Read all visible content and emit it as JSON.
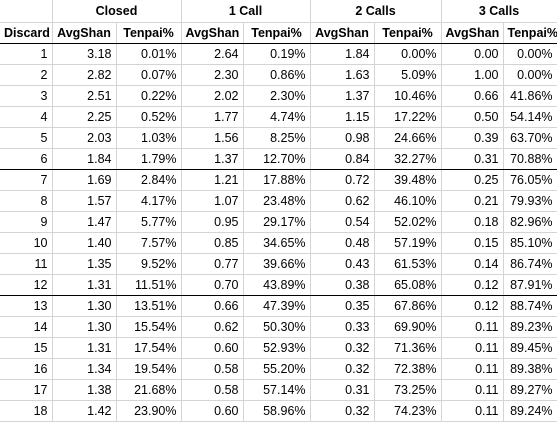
{
  "groups": [
    "Closed",
    "1 Call",
    "2 Calls",
    "3 Calls"
  ],
  "subheaders": [
    "Discard",
    "AvgShan",
    "Tenpai%",
    "AvgShan",
    "Tenpai%",
    "AvgShan",
    "Tenpai%",
    "AvgShan",
    "Tenpai%"
  ],
  "rows": [
    [
      "1",
      "3.18",
      "0.01%",
      "2.64",
      "0.19%",
      "1.84",
      "0.00%",
      "0.00",
      "0.00%"
    ],
    [
      "2",
      "2.82",
      "0.07%",
      "2.30",
      "0.86%",
      "1.63",
      "5.09%",
      "1.00",
      "0.00%"
    ],
    [
      "3",
      "2.51",
      "0.22%",
      "2.02",
      "2.30%",
      "1.37",
      "10.46%",
      "0.66",
      "41.86%"
    ],
    [
      "4",
      "2.25",
      "0.52%",
      "1.77",
      "4.74%",
      "1.15",
      "17.22%",
      "0.50",
      "54.14%"
    ],
    [
      "5",
      "2.03",
      "1.03%",
      "1.56",
      "8.25%",
      "0.98",
      "24.66%",
      "0.39",
      "63.70%"
    ],
    [
      "6",
      "1.84",
      "1.79%",
      "1.37",
      "12.70%",
      "0.84",
      "32.27%",
      "0.31",
      "70.88%"
    ],
    [
      "7",
      "1.69",
      "2.84%",
      "1.21",
      "17.88%",
      "0.72",
      "39.48%",
      "0.25",
      "76.05%"
    ],
    [
      "8",
      "1.57",
      "4.17%",
      "1.07",
      "23.48%",
      "0.62",
      "46.10%",
      "0.21",
      "79.93%"
    ],
    [
      "9",
      "1.47",
      "5.77%",
      "0.95",
      "29.17%",
      "0.54",
      "52.02%",
      "0.18",
      "82.96%"
    ],
    [
      "10",
      "1.40",
      "7.57%",
      "0.85",
      "34.65%",
      "0.48",
      "57.19%",
      "0.15",
      "85.10%"
    ],
    [
      "11",
      "1.35",
      "9.52%",
      "0.77",
      "39.66%",
      "0.43",
      "61.53%",
      "0.14",
      "86.74%"
    ],
    [
      "12",
      "1.31",
      "11.51%",
      "0.70",
      "43.89%",
      "0.38",
      "65.08%",
      "0.12",
      "87.91%"
    ],
    [
      "13",
      "1.30",
      "13.51%",
      "0.66",
      "47.39%",
      "0.35",
      "67.86%",
      "0.12",
      "88.74%"
    ],
    [
      "14",
      "1.30",
      "15.54%",
      "0.62",
      "50.30%",
      "0.33",
      "69.90%",
      "0.11",
      "89.23%"
    ],
    [
      "15",
      "1.31",
      "17.54%",
      "0.60",
      "52.93%",
      "0.32",
      "71.36%",
      "0.11",
      "89.45%"
    ],
    [
      "16",
      "1.34",
      "19.54%",
      "0.58",
      "55.20%",
      "0.32",
      "72.38%",
      "0.11",
      "89.38%"
    ],
    [
      "17",
      "1.38",
      "21.68%",
      "0.58",
      "57.14%",
      "0.31",
      "73.25%",
      "0.11",
      "89.27%"
    ],
    [
      "18",
      "1.42",
      "23.90%",
      "0.60",
      "58.96%",
      "0.32",
      "74.23%",
      "0.11",
      "89.24%"
    ]
  ]
}
